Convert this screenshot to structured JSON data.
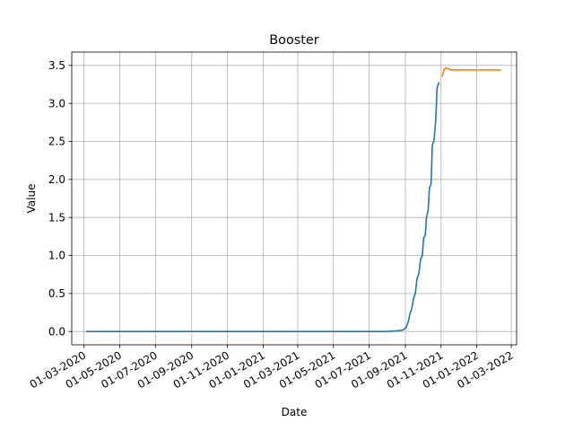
{
  "chart_data": {
    "type": "line",
    "title": "Booster",
    "xlabel": "Date",
    "ylabel": "Value",
    "grid": true,
    "legend": "none",
    "x_type": "date",
    "xlim": [
      "2020-02-09",
      "2022-03-10"
    ],
    "ylim": [
      -0.175,
      3.675
    ],
    "x_ticks": [
      {
        "value": "2020-03-01",
        "label": "01-03-2020"
      },
      {
        "value": "2020-05-01",
        "label": "01-05-2020"
      },
      {
        "value": "2020-07-01",
        "label": "01-07-2020"
      },
      {
        "value": "2020-09-01",
        "label": "01-09-2020"
      },
      {
        "value": "2020-11-01",
        "label": "01-11-2020"
      },
      {
        "value": "2021-01-01",
        "label": "01-01-2021"
      },
      {
        "value": "2021-03-01",
        "label": "01-03-2021"
      },
      {
        "value": "2021-05-01",
        "label": "01-05-2021"
      },
      {
        "value": "2021-07-01",
        "label": "01-07-2021"
      },
      {
        "value": "2021-09-01",
        "label": "01-09-2021"
      },
      {
        "value": "2021-11-01",
        "label": "01-11-2021"
      },
      {
        "value": "2022-01-01",
        "label": "01-01-2022"
      },
      {
        "value": "2022-03-01",
        "label": "01-03-2022"
      }
    ],
    "y_ticks": [
      {
        "value": 0.0,
        "label": "0.0"
      },
      {
        "value": 0.5,
        "label": "0.5"
      },
      {
        "value": 1.0,
        "label": "1.0"
      },
      {
        "value": 1.5,
        "label": "1.5"
      },
      {
        "value": 2.0,
        "label": "2.0"
      },
      {
        "value": 2.5,
        "label": "2.5"
      },
      {
        "value": 3.0,
        "label": "3.0"
      },
      {
        "value": 3.5,
        "label": "3.5"
      }
    ],
    "series": [
      {
        "color": "#1f77b4",
        "points": [
          [
            "2020-03-06",
            0.0
          ],
          [
            "2020-07-01",
            0.0
          ],
          [
            "2021-01-01",
            0.0
          ],
          [
            "2021-05-01",
            0.0
          ],
          [
            "2021-08-01",
            0.0
          ],
          [
            "2021-08-20",
            0.01
          ],
          [
            "2021-08-28",
            0.02
          ],
          [
            "2021-09-02",
            0.05
          ],
          [
            "2021-09-06",
            0.13
          ],
          [
            "2021-09-09",
            0.24
          ],
          [
            "2021-09-12",
            0.3
          ],
          [
            "2021-09-15",
            0.44
          ],
          [
            "2021-09-18",
            0.5
          ],
          [
            "2021-09-21",
            0.7
          ],
          [
            "2021-09-24",
            0.76
          ],
          [
            "2021-09-27",
            0.95
          ],
          [
            "2021-09-30",
            1.0
          ],
          [
            "2021-10-02",
            1.22
          ],
          [
            "2021-10-05",
            1.27
          ],
          [
            "2021-10-07",
            1.5
          ],
          [
            "2021-10-10",
            1.6
          ],
          [
            "2021-10-12",
            1.88
          ],
          [
            "2021-10-15",
            1.95
          ],
          [
            "2021-10-17",
            2.45
          ],
          [
            "2021-10-20",
            2.52
          ],
          [
            "2021-10-23",
            2.8
          ],
          [
            "2021-10-25",
            3.2
          ],
          [
            "2021-10-28",
            3.27
          ]
        ]
      },
      {
        "color": "#ff7f0e",
        "points": [
          [
            "2021-11-03",
            3.36
          ],
          [
            "2021-11-06",
            3.44
          ],
          [
            "2021-11-09",
            3.47
          ],
          [
            "2021-11-12",
            3.46
          ],
          [
            "2021-11-18",
            3.44
          ],
          [
            "2021-12-01",
            3.44
          ],
          [
            "2022-01-01",
            3.44
          ],
          [
            "2022-02-10",
            3.44
          ]
        ]
      }
    ]
  }
}
